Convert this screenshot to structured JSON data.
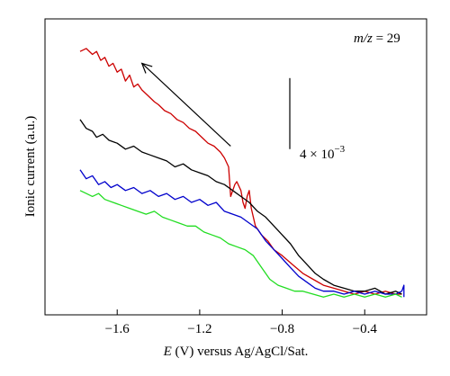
{
  "chart_data": {
    "type": "line",
    "title": "",
    "xlabel_italic": "E",
    "xlabel_rest": " (V) versus Ag/AgCl/Sat.",
    "ylabel": "Ionic current (a.u.)",
    "xlim": [
      -1.95,
      -0.1
    ],
    "ylim": [
      0,
      1
    ],
    "xticks": [
      -1.6,
      -1.2,
      -0.8,
      -0.4
    ],
    "xtick_labels": [
      "−1.6",
      "−1.2",
      "−0.8",
      "−0.4"
    ],
    "mz_label_italic": "m/z",
    "mz_label_rest": " = 29",
    "scalebar_label_base": "4 × 10",
    "scalebar_label_exp": "−3",
    "scalebar_y": [
      0.8,
      0.56
    ],
    "arrow": {
      "from": [
        -1.05,
        0.57
      ],
      "to": [
        -1.48,
        0.85
      ]
    },
    "series": [
      {
        "color": "#cc0000",
        "points": [
          [
            -1.78,
            0.89
          ],
          [
            -1.75,
            0.9
          ],
          [
            -1.72,
            0.88
          ],
          [
            -1.7,
            0.89
          ],
          [
            -1.68,
            0.86
          ],
          [
            -1.66,
            0.87
          ],
          [
            -1.64,
            0.84
          ],
          [
            -1.62,
            0.85
          ],
          [
            -1.6,
            0.82
          ],
          [
            -1.58,
            0.83
          ],
          [
            -1.56,
            0.79
          ],
          [
            -1.54,
            0.81
          ],
          [
            -1.52,
            0.77
          ],
          [
            -1.5,
            0.78
          ],
          [
            -1.48,
            0.76
          ],
          [
            -1.45,
            0.74
          ],
          [
            -1.42,
            0.72
          ],
          [
            -1.4,
            0.71
          ],
          [
            -1.37,
            0.69
          ],
          [
            -1.34,
            0.68
          ],
          [
            -1.31,
            0.66
          ],
          [
            -1.28,
            0.65
          ],
          [
            -1.25,
            0.63
          ],
          [
            -1.22,
            0.62
          ],
          [
            -1.19,
            0.6
          ],
          [
            -1.16,
            0.58
          ],
          [
            -1.13,
            0.57
          ],
          [
            -1.1,
            0.55
          ],
          [
            -1.08,
            0.53
          ],
          [
            -1.06,
            0.5
          ],
          [
            -1.05,
            0.4
          ],
          [
            -1.04,
            0.42
          ],
          [
            -1.03,
            0.44
          ],
          [
            -1.02,
            0.45
          ],
          [
            -1.0,
            0.42
          ],
          [
            -0.99,
            0.38
          ],
          [
            -0.98,
            0.36
          ],
          [
            -0.97,
            0.4
          ],
          [
            -0.96,
            0.42
          ],
          [
            -0.95,
            0.36
          ],
          [
            -0.93,
            0.3
          ],
          [
            -0.9,
            0.27
          ],
          [
            -0.87,
            0.25
          ],
          [
            -0.84,
            0.22
          ],
          [
            -0.8,
            0.2
          ],
          [
            -0.75,
            0.17
          ],
          [
            -0.7,
            0.14
          ],
          [
            -0.65,
            0.12
          ],
          [
            -0.6,
            0.1
          ],
          [
            -0.55,
            0.09
          ],
          [
            -0.5,
            0.08
          ],
          [
            -0.45,
            0.07
          ],
          [
            -0.4,
            0.08
          ],
          [
            -0.35,
            0.07
          ],
          [
            -0.3,
            0.08
          ],
          [
            -0.25,
            0.07
          ],
          [
            -0.22,
            0.07
          ]
        ]
      },
      {
        "color": "#000000",
        "points": [
          [
            -1.78,
            0.66
          ],
          [
            -1.75,
            0.63
          ],
          [
            -1.72,
            0.62
          ],
          [
            -1.7,
            0.6
          ],
          [
            -1.67,
            0.61
          ],
          [
            -1.64,
            0.59
          ],
          [
            -1.6,
            0.58
          ],
          [
            -1.56,
            0.56
          ],
          [
            -1.52,
            0.57
          ],
          [
            -1.48,
            0.55
          ],
          [
            -1.44,
            0.54
          ],
          [
            -1.4,
            0.53
          ],
          [
            -1.36,
            0.52
          ],
          [
            -1.32,
            0.5
          ],
          [
            -1.28,
            0.51
          ],
          [
            -1.24,
            0.49
          ],
          [
            -1.2,
            0.48
          ],
          [
            -1.16,
            0.47
          ],
          [
            -1.12,
            0.45
          ],
          [
            -1.08,
            0.44
          ],
          [
            -1.04,
            0.42
          ],
          [
            -1.0,
            0.4
          ],
          [
            -0.96,
            0.38
          ],
          [
            -0.92,
            0.35
          ],
          [
            -0.88,
            0.33
          ],
          [
            -0.84,
            0.3
          ],
          [
            -0.8,
            0.27
          ],
          [
            -0.76,
            0.24
          ],
          [
            -0.72,
            0.2
          ],
          [
            -0.68,
            0.17
          ],
          [
            -0.64,
            0.14
          ],
          [
            -0.6,
            0.12
          ],
          [
            -0.55,
            0.1
          ],
          [
            -0.5,
            0.09
          ],
          [
            -0.45,
            0.08
          ],
          [
            -0.4,
            0.08
          ],
          [
            -0.35,
            0.09
          ],
          [
            -0.3,
            0.07
          ],
          [
            -0.25,
            0.08
          ],
          [
            -0.22,
            0.07
          ]
        ]
      },
      {
        "color": "#0000cc",
        "points": [
          [
            -1.78,
            0.49
          ],
          [
            -1.75,
            0.46
          ],
          [
            -1.72,
            0.47
          ],
          [
            -1.69,
            0.44
          ],
          [
            -1.66,
            0.45
          ],
          [
            -1.63,
            0.43
          ],
          [
            -1.6,
            0.44
          ],
          [
            -1.56,
            0.42
          ],
          [
            -1.52,
            0.43
          ],
          [
            -1.48,
            0.41
          ],
          [
            -1.44,
            0.42
          ],
          [
            -1.4,
            0.4
          ],
          [
            -1.36,
            0.41
          ],
          [
            -1.32,
            0.39
          ],
          [
            -1.28,
            0.4
          ],
          [
            -1.24,
            0.38
          ],
          [
            -1.2,
            0.39
          ],
          [
            -1.16,
            0.37
          ],
          [
            -1.12,
            0.38
          ],
          [
            -1.08,
            0.35
          ],
          [
            -1.04,
            0.34
          ],
          [
            -1.0,
            0.33
          ],
          [
            -0.96,
            0.31
          ],
          [
            -0.92,
            0.29
          ],
          [
            -0.88,
            0.25
          ],
          [
            -0.84,
            0.22
          ],
          [
            -0.8,
            0.19
          ],
          [
            -0.76,
            0.16
          ],
          [
            -0.72,
            0.13
          ],
          [
            -0.68,
            0.11
          ],
          [
            -0.64,
            0.09
          ],
          [
            -0.6,
            0.08
          ],
          [
            -0.55,
            0.08
          ],
          [
            -0.5,
            0.07
          ],
          [
            -0.45,
            0.08
          ],
          [
            -0.4,
            0.07
          ],
          [
            -0.35,
            0.08
          ],
          [
            -0.3,
            0.07
          ],
          [
            -0.25,
            0.07
          ],
          [
            -0.22,
            0.08
          ],
          [
            -0.21,
            0.1
          ],
          [
            -0.21,
            0.06
          ]
        ]
      },
      {
        "color": "#22dd22",
        "points": [
          [
            -1.78,
            0.42
          ],
          [
            -1.75,
            0.41
          ],
          [
            -1.72,
            0.4
          ],
          [
            -1.69,
            0.41
          ],
          [
            -1.66,
            0.39
          ],
          [
            -1.62,
            0.38
          ],
          [
            -1.58,
            0.37
          ],
          [
            -1.54,
            0.36
          ],
          [
            -1.5,
            0.35
          ],
          [
            -1.46,
            0.34
          ],
          [
            -1.42,
            0.35
          ],
          [
            -1.38,
            0.33
          ],
          [
            -1.34,
            0.32
          ],
          [
            -1.3,
            0.31
          ],
          [
            -1.26,
            0.3
          ],
          [
            -1.22,
            0.3
          ],
          [
            -1.18,
            0.28
          ],
          [
            -1.14,
            0.27
          ],
          [
            -1.1,
            0.26
          ],
          [
            -1.06,
            0.24
          ],
          [
            -1.02,
            0.23
          ],
          [
            -0.98,
            0.22
          ],
          [
            -0.94,
            0.2
          ],
          [
            -0.9,
            0.16
          ],
          [
            -0.86,
            0.12
          ],
          [
            -0.82,
            0.1
          ],
          [
            -0.78,
            0.09
          ],
          [
            -0.74,
            0.08
          ],
          [
            -0.7,
            0.08
          ],
          [
            -0.65,
            0.07
          ],
          [
            -0.6,
            0.06
          ],
          [
            -0.55,
            0.07
          ],
          [
            -0.5,
            0.06
          ],
          [
            -0.45,
            0.07
          ],
          [
            -0.4,
            0.06
          ],
          [
            -0.35,
            0.07
          ],
          [
            -0.3,
            0.06
          ],
          [
            -0.25,
            0.07
          ],
          [
            -0.22,
            0.06
          ]
        ]
      }
    ]
  }
}
